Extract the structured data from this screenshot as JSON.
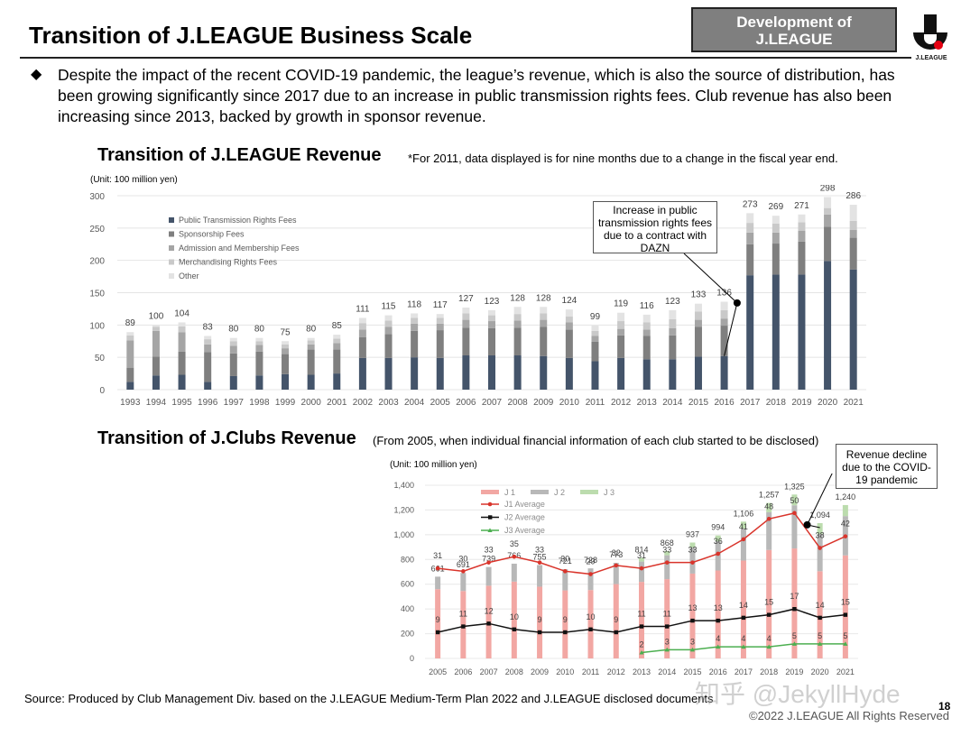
{
  "header": {
    "title": "Transition of J.LEAGUE Business Scale",
    "badge_line1": "Development of",
    "badge_line2": "J.LEAGUE",
    "logo_text": "J.LEAGUE"
  },
  "body": {
    "bullet": "◆",
    "text": "Despite the impact of the recent COVID-19 pandemic, the league’s revenue, which is also the source of distribution, has been growing significantly since 2017 due to an increase in public transmission rights fees. Club revenue has also been increasing since 2013, backed by growth in sponsor revenue."
  },
  "section1": {
    "title": "Transition of J.LEAGUE Revenue",
    "note": "*For 2011, data displayed is for nine months due to a change in the fiscal year end.",
    "unit": "(Unit: 100 million yen)",
    "callout": "Increase in public transmission rights fees due to a contract with DAZN"
  },
  "section2": {
    "title": "Transition of J.Clubs Revenue",
    "note": "(From 2005, when individual financial information of each club started to be disclosed)",
    "unit": "(Unit: 100 million yen)",
    "callout": "Revenue decline due to the COVID-19 pandemic"
  },
  "footer": {
    "source": "Source: Produced by Club Management Div. based on the J.LEAGUE Medium-Term Plan 2022 and J.LEAGUE disclosed documents",
    "page": "18",
    "copyright": "©2022 J.LEAGUE All Rights Reserved",
    "watermark": "知乎 @JekyllHyde"
  },
  "chart_data": [
    {
      "type": "bar",
      "stacked": true,
      "ylim": [
        0,
        300
      ],
      "yticks": [
        0,
        50,
        100,
        150,
        200,
        250,
        300
      ],
      "grid": true,
      "legend": "top-left",
      "categories": [
        "1993",
        "1994",
        "1995",
        "1996",
        "1997",
        "1998",
        "1999",
        "2000",
        "2001",
        "2002",
        "2003",
        "2004",
        "2005",
        "2006",
        "2007",
        "2008",
        "2009",
        "2010",
        "2011",
        "2012",
        "2013",
        "2014",
        "2015",
        "2016",
        "2017",
        "2018",
        "2019",
        "2020",
        "2021"
      ],
      "totals": [
        89,
        100,
        104,
        83,
        80,
        80,
        75,
        80,
        85,
        111,
        115,
        118,
        117,
        127,
        123,
        128,
        128,
        124,
        99,
        119,
        116,
        123,
        133,
        136,
        273,
        269,
        271,
        298,
        286
      ],
      "series": [
        {
          "name": "Public Transmission Rights Fees",
          "color": "#44546a",
          "values": [
            12,
            22,
            23,
            12,
            21,
            22,
            24,
            23,
            25,
            49,
            49,
            50,
            49,
            53,
            53,
            53,
            52,
            49,
            44,
            49,
            47,
            47,
            51,
            52,
            177,
            178,
            178,
            199,
            186
          ]
        },
        {
          "name": "Sponsorship Fees",
          "color": "#7f7f7f",
          "values": [
            22,
            29,
            36,
            46,
            35,
            37,
            31,
            39,
            37,
            32,
            37,
            41,
            43,
            43,
            42,
            43,
            45,
            44,
            30,
            35,
            36,
            37,
            46,
            47,
            48,
            48,
            51,
            53,
            49
          ]
        },
        {
          "name": "Admission and Membership Fees",
          "color": "#a5a5a5",
          "values": [
            42,
            40,
            30,
            12,
            12,
            10,
            9,
            8,
            10,
            12,
            11,
            11,
            10,
            12,
            11,
            11,
            11,
            11,
            9,
            10,
            10,
            11,
            11,
            11,
            18,
            17,
            17,
            19,
            12
          ]
        },
        {
          "name": "Merchandising Rights Fees",
          "color": "#c9c9c9",
          "values": [
            8,
            6,
            9,
            8,
            7,
            6,
            6,
            6,
            7,
            10,
            10,
            9,
            9,
            10,
            9,
            10,
            10,
            9,
            8,
            12,
            11,
            14,
            13,
            13,
            15,
            14,
            13,
            10,
            14
          ]
        },
        {
          "name": "Other",
          "color": "#e3e3e3",
          "values": [
            5,
            3,
            6,
            5,
            5,
            5,
            5,
            4,
            6,
            8,
            8,
            7,
            6,
            9,
            8,
            11,
            10,
            11,
            8,
            13,
            12,
            14,
            12,
            13,
            15,
            12,
            12,
            17,
            25
          ]
        }
      ]
    },
    {
      "type": "bar",
      "stacked": true,
      "ylim": [
        0,
        1400
      ],
      "yticks": [
        0,
        200,
        400,
        600,
        800,
        1000,
        1200,
        1400
      ],
      "grid": true,
      "legend": "top-left",
      "categories": [
        "2005",
        "2006",
        "2007",
        "2008",
        "2009",
        "2010",
        "2011",
        "2012",
        "2013",
        "2014",
        "2015",
        "2016",
        "2017",
        "2018",
        "2019",
        "2020",
        "2021"
      ],
      "totals": [
        661,
        691,
        739,
        766,
        755,
        721,
        728,
        773,
        814,
        868,
        937,
        994,
        1106,
        1257,
        1325,
        1094,
        1240
      ],
      "totals_labels": [
        "661",
        "691",
        "739",
        "766",
        "755",
        "721",
        "728",
        "773",
        "814",
        "868",
        "937",
        "994",
        "1,106",
        "1,257",
        "1,325",
        "1,094",
        "1,240"
      ],
      "series": [
        {
          "name": "J 1",
          "color": "#f2a7a3",
          "values": [
            560,
            545,
            588,
            621,
            580,
            550,
            553,
            601,
            619,
            641,
            686,
            711,
            791,
            877,
            889,
            705,
            833
          ]
        },
        {
          "name": "J 2",
          "color": "#b8b8b8",
          "values": [
            101,
            146,
            151,
            145,
            175,
            171,
            175,
            172,
            164,
            193,
            210,
            235,
            259,
            305,
            349,
            301,
            318
          ]
        },
        {
          "name": "J 3",
          "color": "#bcdcae",
          "values": [
            0,
            0,
            0,
            0,
            0,
            0,
            0,
            0,
            31,
            34,
            41,
            48,
            56,
            75,
            87,
            88,
            89
          ]
        }
      ],
      "lines": [
        {
          "name": "J1 Average",
          "color": "#d9342b",
          "values": [
            31,
            30,
            33,
            35,
            33,
            30,
            29,
            32,
            31,
            33,
            33,
            36,
            41,
            48,
            50,
            38,
            42
          ]
        },
        {
          "name": "J2 Average",
          "color": "#111111",
          "values": [
            9,
            11,
            12,
            10,
            9,
            9,
            10,
            9,
            11,
            11,
            13,
            13,
            14,
            15,
            17,
            14,
            15
          ]
        },
        {
          "name": "J3 Average",
          "color": "#4caf50",
          "values": [
            null,
            null,
            null,
            null,
            null,
            null,
            null,
            null,
            2,
            3,
            3,
            4,
            4,
            4,
            5,
            5,
            5
          ]
        }
      ]
    }
  ]
}
